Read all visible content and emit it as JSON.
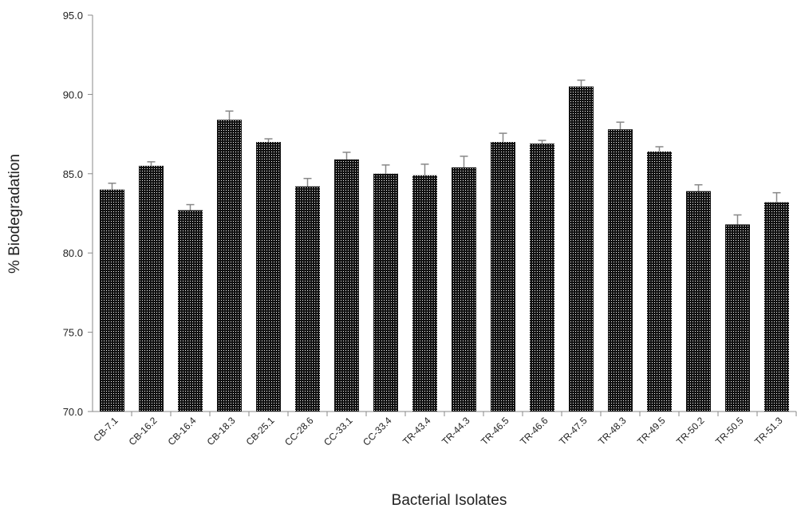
{
  "chart_data": {
    "type": "bar",
    "title": "",
    "xlabel": "Bacterial Isolates",
    "ylabel": "% Biodegradation",
    "ylim": [
      70.0,
      95.0
    ],
    "yticks": [
      "70.0",
      "75.0",
      "80.0",
      "85.0",
      "90.0",
      "95.0"
    ],
    "grid": false,
    "legend": "none",
    "bar_pattern": "dotted black",
    "categories": [
      "CB-7.1",
      "CB-16.2",
      "CB-16.4",
      "CB-18.3",
      "CB-25.1",
      "CC-28.6",
      "CC-33.1",
      "CC-33.4",
      "TR-43.4",
      "TR-44.3",
      "TR-46.5",
      "TR-46.6",
      "TR-47.5",
      "TR-48.3",
      "TR-49.5",
      "TR-50.2",
      "TR-50.5",
      "TR-51.3"
    ],
    "values": [
      84.0,
      85.5,
      82.7,
      88.4,
      87.0,
      84.2,
      85.9,
      85.0,
      84.9,
      85.4,
      87.0,
      86.9,
      90.5,
      87.8,
      86.4,
      83.9,
      81.8,
      83.2
    ],
    "error": [
      0.4,
      0.25,
      0.35,
      0.55,
      0.2,
      0.5,
      0.45,
      0.55,
      0.7,
      0.7,
      0.55,
      0.2,
      0.4,
      0.45,
      0.3,
      0.4,
      0.6,
      0.6
    ],
    "colors": {
      "bar": "#111111",
      "dot": "#ffffff",
      "axis": "#888888",
      "error": "#888888"
    }
  }
}
